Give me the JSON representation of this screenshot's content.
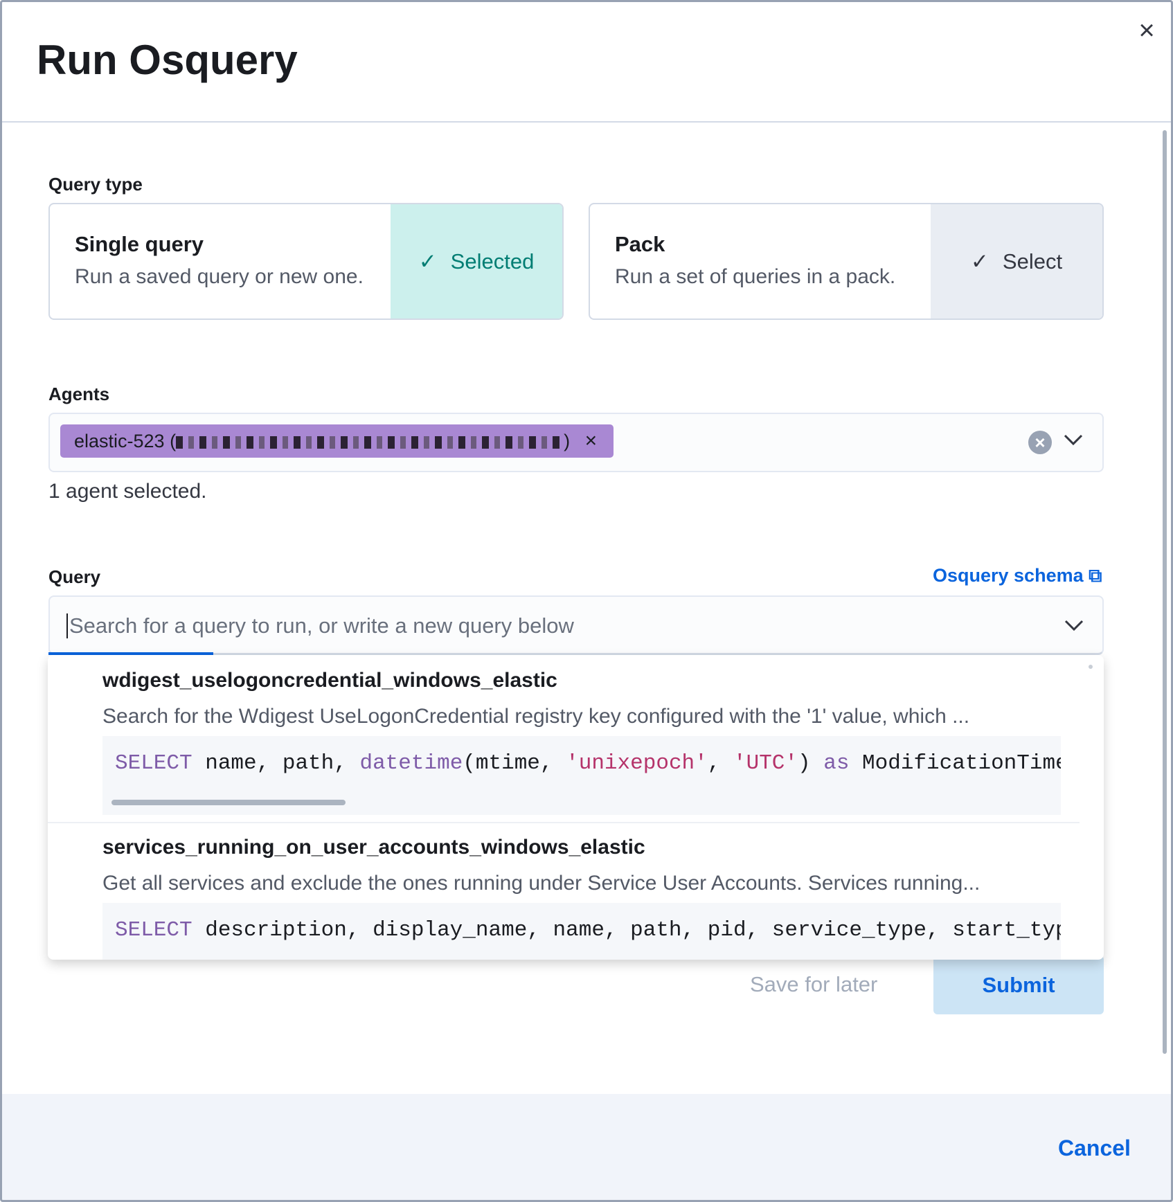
{
  "modal": {
    "title": "Run Osquery",
    "close_icon": "close-icon"
  },
  "query_type": {
    "label": "Query type",
    "single": {
      "title": "Single query",
      "description": "Run a saved query or new one.",
      "status": "Selected"
    },
    "pack": {
      "title": "Pack",
      "description": "Run a set of queries in a pack.",
      "status": "Select"
    }
  },
  "agents": {
    "label": "Agents",
    "chip": "elastic-523 (",
    "chip_end": ")",
    "help": "1 agent selected."
  },
  "query": {
    "label": "Query",
    "schema_link": "Osquery schema",
    "placeholder": "Search for a query to run, or write a new query below",
    "options": [
      {
        "name": "wdigest_uselogoncredential_windows_elastic",
        "description": "Search for the Wdigest UseLogonCredential registry key configured with the '1' value, which ...",
        "code": "SELECT name, path, datetime(mtime, 'unixepoch', 'UTC') as ModificationTime"
      },
      {
        "name": "services_running_on_user_accounts_windows_elastic",
        "description": "Get all services and exclude the ones running under Service User Accounts. Services running...",
        "code": "SELECT description, display_name, name, path, pid, service_type, start_typ"
      }
    ]
  },
  "actions": {
    "save": "Save for later",
    "submit": "Submit",
    "cancel": "Cancel"
  },
  "colors": {
    "accent": "#0b64dd",
    "selected_bg": "#ccf0ed",
    "selected_text": "#017d73",
    "chip": "#a988d3",
    "footer": "#f1f4fa"
  }
}
